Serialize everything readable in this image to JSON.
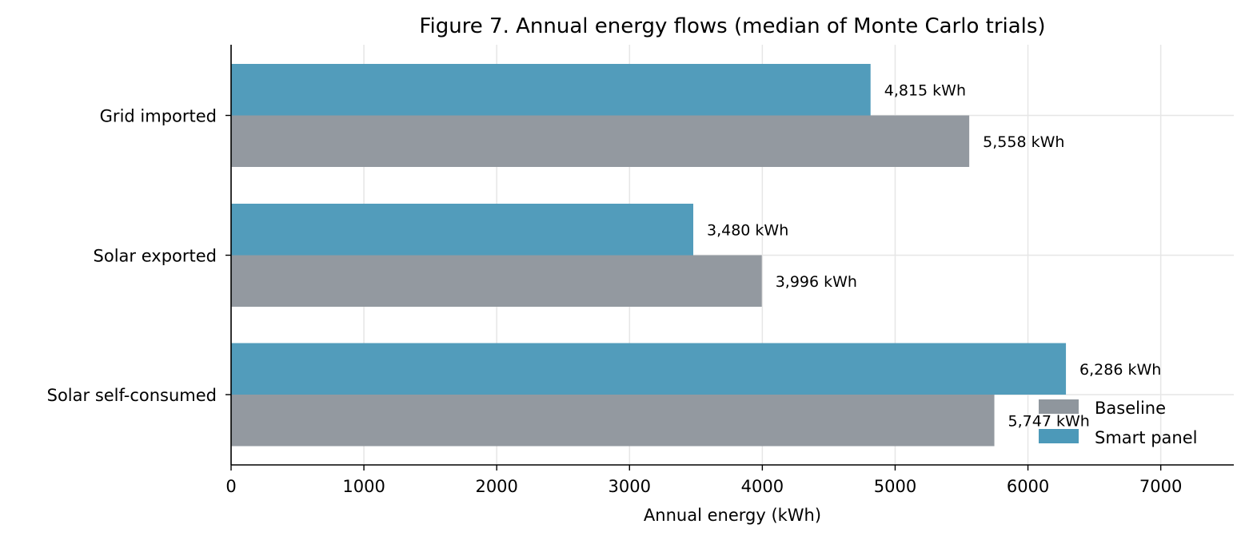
{
  "chart_data": {
    "type": "bar",
    "orientation": "horizontal",
    "title": "Figure 7. Annual energy flows (median of Monte Carlo trials)",
    "xlabel": "Annual energy (kWh)",
    "ylabel": "",
    "xlim": [
      0,
      7550
    ],
    "xticks": [
      0,
      1000,
      2000,
      3000,
      4000,
      5000,
      6000,
      7000
    ],
    "grid": true,
    "legend_position": "lower-right",
    "categories": [
      "Grid imported",
      "Solar exported",
      "Solar self-consumed"
    ],
    "series": [
      {
        "name": "Smart panel",
        "color": "#4c99b9",
        "values": [
          4815,
          3480,
          6286
        ],
        "labels": [
          "4,815 kWh",
          "3,480 kWh",
          "6,286 kWh"
        ]
      },
      {
        "name": "Baseline",
        "color": "#8f969d",
        "values": [
          5558,
          3996,
          5747
        ],
        "labels": [
          "5,558 kWh",
          "3,996 kWh",
          "5,747 kWh"
        ]
      }
    ],
    "legend_order": [
      "Baseline",
      "Smart panel"
    ]
  }
}
